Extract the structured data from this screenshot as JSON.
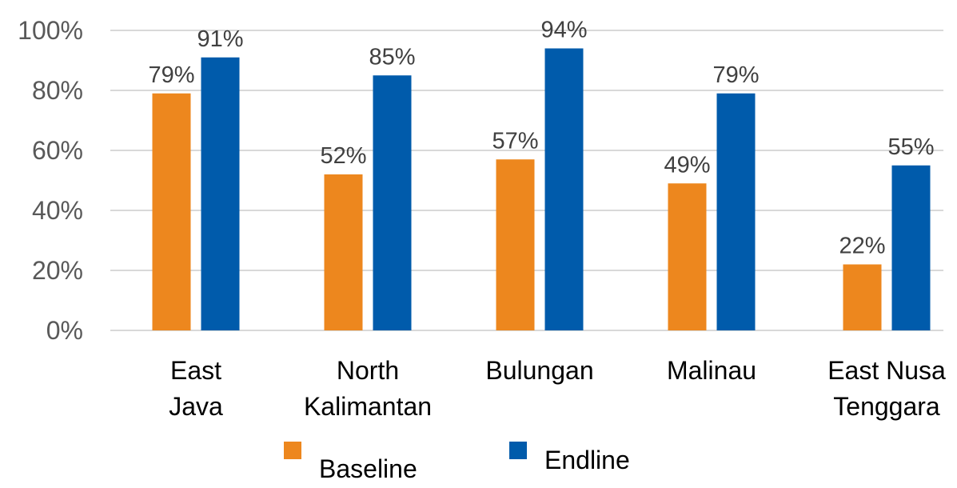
{
  "chart_data": {
    "type": "bar",
    "categories": [
      [
        "East",
        "Java"
      ],
      [
        "North",
        "Kalimantan"
      ],
      [
        "Bulungan"
      ],
      [
        "Malinau"
      ],
      [
        "East Nusa",
        "Tenggara"
      ]
    ],
    "series": [
      {
        "name": "Baseline",
        "color": "#ED871E",
        "values": [
          79,
          52,
          57,
          49,
          22
        ]
      },
      {
        "name": "Endline",
        "color": "#005BAB",
        "values": [
          91,
          85,
          94,
          79,
          55
        ]
      }
    ],
    "y_ticks": [
      "0%",
      "20%",
      "40%",
      "60%",
      "80%",
      "100%"
    ],
    "ylim": [
      0,
      100
    ],
    "value_suffix": "%",
    "grid": true,
    "legend_position": "bottom"
  }
}
